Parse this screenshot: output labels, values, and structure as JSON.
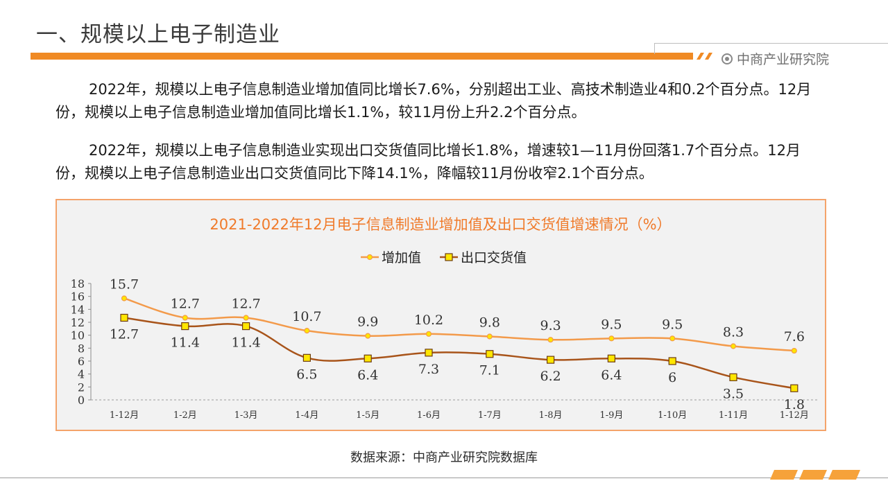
{
  "header": {
    "title": "一、规模以上电子制造业",
    "brand": "中商产业研究院"
  },
  "body": {
    "paragraph1": "2022年，规模以上电子信息制造业增加值同比增长7.6%，分别超出工业、高技术制造业4和0.2个百分点。12月份，规模以上电子信息制造业增加值同比增长1.1%，较11月份上升2.2个百分点。",
    "paragraph2": "2022年，规模以上电子信息制造业实现出口交货值同比增长1.8%，增速较1—11月份回落1.7个百分点。12月份，规模以上电子信息制造业出口交货值同比下降14.1%，降幅较11月份收窄2.1个百分点。"
  },
  "source": "数据来源：中商产业研究院数据库",
  "colors": {
    "accent": "#f08a24",
    "series1": "#f39a4a",
    "series2": "#a8541a",
    "marker_fill_square": "#ffe600",
    "chart_title": "#f07a2a",
    "chart_border": "#f4a36a"
  },
  "chart_data": {
    "type": "line",
    "title": "2021-2022年12月电子信息制造业增加值及出口交货值增速情况（%）",
    "xlabel": "",
    "ylabel": "",
    "categories": [
      "1-12月",
      "1-2月",
      "1-3月",
      "1-4月",
      "1-5月",
      "1-6月",
      "1-7月",
      "1-8月",
      "1-9月",
      "1-10月",
      "1-11月",
      "1-12月"
    ],
    "series": [
      {
        "name": "增加值",
        "marker": "circle",
        "values": [
          15.7,
          12.7,
          12.7,
          10.7,
          9.9,
          10.2,
          9.8,
          9.3,
          9.5,
          9.5,
          8.3,
          7.6
        ],
        "labels": [
          "15.7",
          "12.7",
          "12.7",
          "10.7",
          "9.9",
          "10.2",
          "9.8",
          "9.3",
          "9.5",
          "9.5",
          "8.3",
          "7.6"
        ]
      },
      {
        "name": "出口交货值",
        "marker": "square",
        "values": [
          12.7,
          11.4,
          11.4,
          6.5,
          6.4,
          7.3,
          7.1,
          6.2,
          6.4,
          6,
          3.5,
          1.8
        ],
        "labels": [
          "12.7",
          "11.4",
          "11.4",
          "6.5",
          "6.4",
          "7.3",
          "7.1",
          "6.2",
          "6.4",
          "6",
          "3.5",
          "1.8"
        ]
      }
    ],
    "ylim": [
      0,
      18
    ],
    "yticks": [
      "0",
      "2",
      "4",
      "6",
      "8",
      "10",
      "12",
      "14",
      "16",
      "18"
    ],
    "legend_position": "top-center",
    "grid": false
  }
}
